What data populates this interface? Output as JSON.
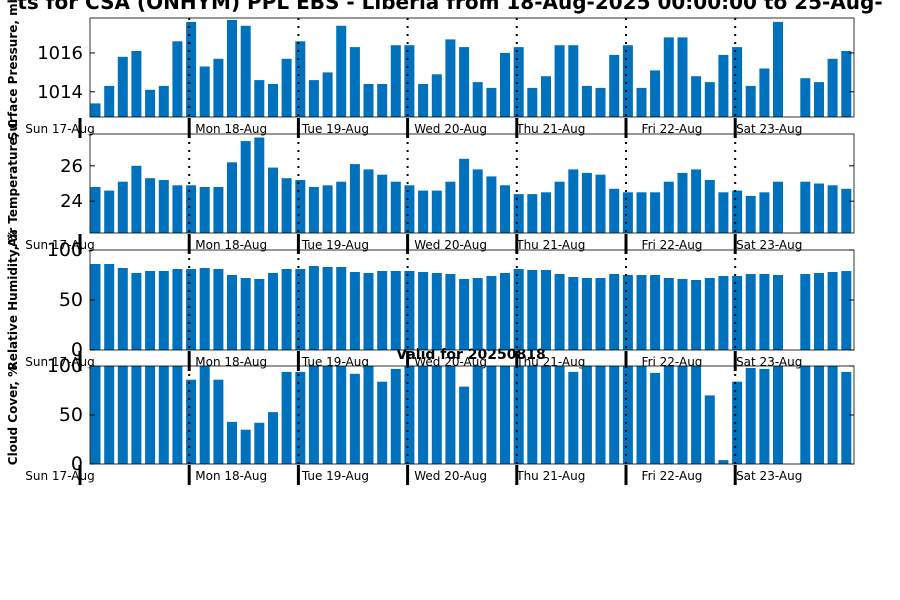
{
  "figure": {
    "title": "ts for CSA (ONHYM) PPL EBS  - Liberia from 18-Aug-2025 00:00:00 to 25-Aug-",
    "subtitle": "Valid for 20250818",
    "bar_color": "#0072bd",
    "day_labels": [
      "Sun 17-Aug",
      "Mon 18-Aug",
      "Tue 19-Aug",
      "Wed 20-Aug",
      "Thu 21-Aug",
      "Fri 22-Aug",
      "Sat 23-Aug"
    ]
  },
  "chart_data": [
    {
      "type": "bar",
      "ylabel": "Surface Pressure, mb",
      "ylim": [
        1012.7,
        1017.8
      ],
      "yticks": [
        1014,
        1016
      ],
      "values": [
        1013.4,
        1014.3,
        1015.8,
        1016.1,
        1014.1,
        1014.3,
        1016.6,
        1017.6,
        1015.3,
        1015.7,
        1017.7,
        1017.4,
        1014.6,
        1014.4,
        1015.7,
        1016.6,
        1014.6,
        1015.0,
        1017.4,
        1016.3,
        1014.4,
        1014.4,
        1016.4,
        1016.4,
        1014.4,
        1014.9,
        1016.7,
        1016.3,
        1014.5,
        1014.2,
        1016.0,
        1016.3,
        1014.2,
        1014.8,
        1016.4,
        1016.4,
        1014.3,
        1014.2,
        1015.9,
        1016.4,
        1014.2,
        1015.1,
        1016.8,
        1016.8,
        1014.8,
        1014.5,
        1015.9,
        1016.3,
        1014.3,
        1015.2,
        1017.6,
        null,
        1014.7,
        1014.5,
        1015.7,
        1016.1
      ]
    },
    {
      "type": "bar",
      "ylabel": "Air Temperature, C",
      "ylim": [
        22.2,
        27.8
      ],
      "yticks": [
        24,
        26
      ],
      "values": [
        24.8,
        24.6,
        25.1,
        26.0,
        25.3,
        25.2,
        24.9,
        24.9,
        24.8,
        24.8,
        26.2,
        27.4,
        27.6,
        25.9,
        25.3,
        25.2,
        24.8,
        24.9,
        25.1,
        26.1,
        25.8,
        25.5,
        25.1,
        24.9,
        24.6,
        24.6,
        25.1,
        26.4,
        25.8,
        25.4,
        24.9,
        24.4,
        24.4,
        24.5,
        25.1,
        25.8,
        25.6,
        25.5,
        24.7,
        24.5,
        24.5,
        24.5,
        25.1,
        25.6,
        25.8,
        25.2,
        24.5,
        24.6,
        24.3,
        24.5,
        25.1,
        null,
        25.1,
        25.0,
        24.9,
        24.7
      ]
    },
    {
      "type": "bar",
      "ylabel": "Relative Humidity, %",
      "ylim": [
        0,
        100
      ],
      "yticks": [
        0,
        50,
        100
      ],
      "values": [
        86,
        86,
        82,
        77,
        79,
        79,
        81,
        81,
        82,
        81,
        75,
        72,
        71,
        77,
        81,
        81,
        84,
        83,
        83,
        78,
        77,
        79,
        79,
        79,
        78,
        77,
        76,
        71,
        72,
        74,
        77,
        81,
        80,
        80,
        76,
        73,
        72,
        72,
        76,
        75,
        75,
        75,
        72,
        71,
        70,
        72,
        74,
        74,
        76,
        76,
        75,
        null,
        76,
        77,
        78,
        79
      ]
    },
    {
      "type": "bar",
      "ylabel": "Cloud Cover, %",
      "ylim": [
        0,
        100
      ],
      "yticks": [
        0,
        50,
        100
      ],
      "values": [
        100,
        100,
        100,
        100,
        100,
        100,
        100,
        86,
        100,
        86,
        43,
        35,
        42,
        53,
        94,
        94,
        100,
        100,
        100,
        92,
        100,
        84,
        97,
        100,
        100,
        100,
        100,
        79,
        100,
        100,
        100,
        100,
        100,
        100,
        100,
        94,
        100,
        100,
        100,
        100,
        100,
        93,
        100,
        100,
        100,
        70,
        4,
        84,
        98,
        97,
        100,
        null,
        100,
        100,
        100,
        94
      ]
    }
  ]
}
